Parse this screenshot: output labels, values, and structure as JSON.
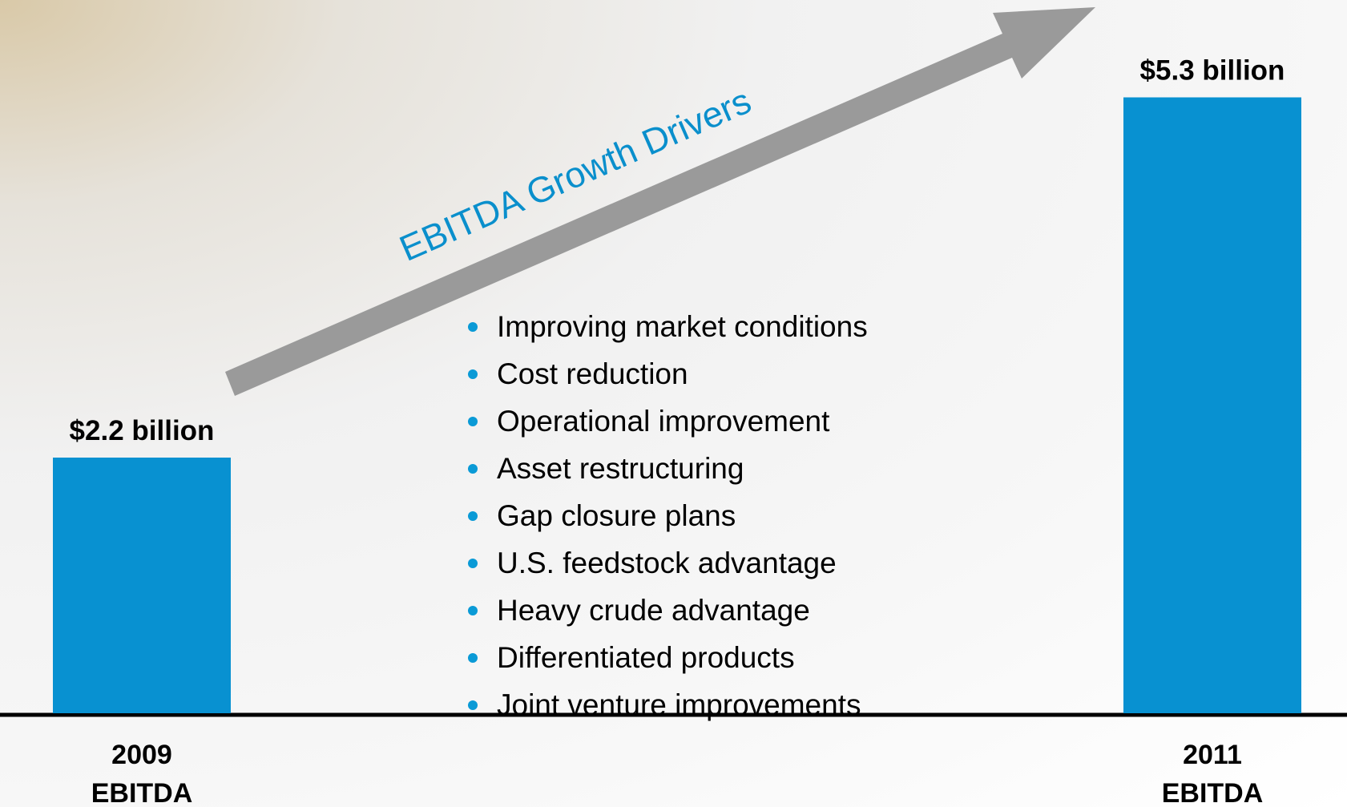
{
  "chart_data": {
    "type": "bar",
    "categories": [
      "2009 EBITDA",
      "2011 EBITDA"
    ],
    "values": [
      2.2,
      5.3
    ],
    "value_labels": [
      "$2.2 billion",
      "$5.3 billion"
    ],
    "color": "#0891d1",
    "annotation": "EBITDA Growth Drivers",
    "drivers": [
      "Improving market conditions",
      "Cost reduction",
      "Operational improvement",
      "Asset restructuring",
      "Gap closure plans",
      "U.S. feedstock advantage",
      "Heavy crude advantage",
      "Differentiated products",
      "Joint venture improvements"
    ]
  }
}
